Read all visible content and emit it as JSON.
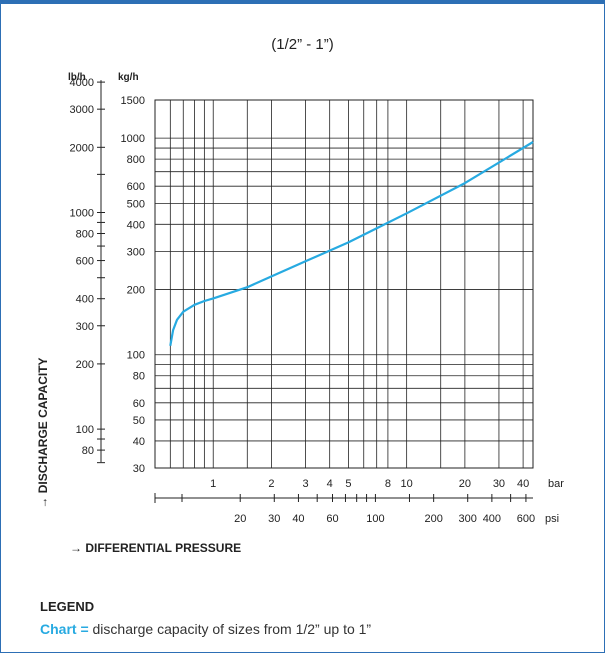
{
  "colors": {
    "frame": "#2d6fb5",
    "curve": "#27aae1",
    "grid": "#222222"
  },
  "chart_data": {
    "type": "line",
    "title": "(1/2” - 1”)",
    "xlabel": "→ DIFFERENTIAL PRESSURE",
    "ylabel": "→ DISCHARGE CAPACITY",
    "x_scale": "log",
    "y_scale": "log",
    "grid": true,
    "y_units_left": "lb/h",
    "y_units_right": "kg/h",
    "x_units_bar": "bar",
    "x_units_psi": "psi",
    "xlim_bar": [
      0.5,
      45
    ],
    "ylim_kg_h": [
      30,
      1500
    ],
    "x_ticks_bar": [
      "1",
      "2",
      "3",
      "4",
      "5",
      "8",
      "10",
      "20",
      "30",
      "40"
    ],
    "x_ticks_psi": [
      "20",
      "30",
      "40",
      "60",
      "100",
      "200",
      "300",
      "400",
      "600"
    ],
    "y_ticks_kg_h": [
      "30",
      "40",
      "50",
      "60",
      "80",
      "100",
      "200",
      "300",
      "400",
      "500",
      "600",
      "800",
      "1000",
      "1500"
    ],
    "y_ticks_lb_h": [
      "80",
      "100",
      "200",
      "300",
      "400",
      "600",
      "800",
      "1000",
      "2000",
      "3000",
      "4000"
    ],
    "series": [
      {
        "x": [
          0.6,
          0.62,
          0.65,
          0.7,
          0.8,
          0.9,
          1.0,
          1.5,
          2,
          3,
          5,
          10,
          20,
          45
        ],
        "y": [
          110,
          130,
          145,
          158,
          170,
          177,
          182,
          205,
          230,
          270,
          330,
          450,
          620,
          960
        ]
      }
    ]
  },
  "legend": {
    "title": "LEGEND",
    "key": "Chart =",
    "text": " discharge capacity of sizes from 1/2” up to 1”"
  }
}
